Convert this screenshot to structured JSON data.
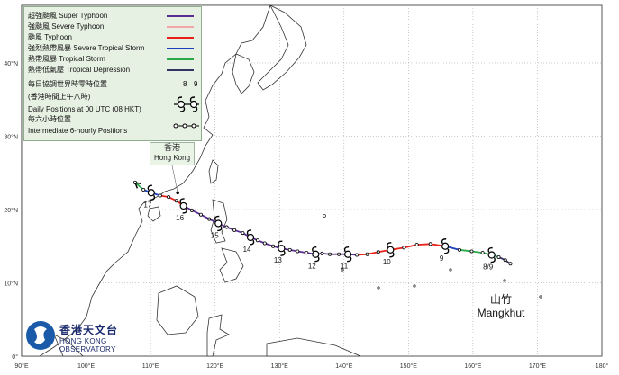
{
  "legend": {
    "super_typhoon": "超強颱風 Super Typhoon",
    "severe_typhoon": "強颱風 Severe Typhoon",
    "typhoon": "颱風  Typhoon",
    "severe_tropical_storm": "強烈熱帶風暴 Severe Tropical Storm",
    "tropical_storm": "熱帶風暴 Tropical Storm",
    "tropical_depression": "熱帶低氣壓  Tropical Depression",
    "daily_cn": "每日協調世界時零時位置",
    "daily_cn2": "(香港時間上午八時)",
    "daily_en": "Daily Positions at 00 UTC (08 HKT)",
    "six_hourly_cn": "每六小時位置",
    "six_hourly_en": "Intermediate 6-hourly Positions",
    "sample_day_a": "8",
    "sample_day_b": "9"
  },
  "colors": {
    "super_typhoon": "#5a2d91",
    "severe_typhoon": "#f4a6a6",
    "typhoon": "#e8221b",
    "severe_tropical_storm": "#1c3fbf",
    "tropical_storm": "#2ba84a",
    "tropical_depression": "#333366",
    "land": "#ffffff",
    "sea": "#ffffff"
  },
  "axes": {
    "lon_labels": [
      "90°E",
      "100°E",
      "110°E",
      "120°E",
      "130°E",
      "140°E",
      "150°E",
      "160°E",
      "170°E",
      "180°"
    ],
    "lat_labels": [
      "40°N",
      "30°N",
      "20°N",
      "10°N",
      "0°"
    ]
  },
  "hong_kong": {
    "cn": "香港",
    "en": "Hong Kong"
  },
  "storm": {
    "name_cn": "山竹",
    "name_en": "Mangkhut"
  },
  "logo": {
    "cn": "香港天文台",
    "en": "HONG KONG OBSERVATORY"
  },
  "track": [
    {
      "lon": 165.8,
      "lat": 12.6,
      "cat": "tropical_depression"
    },
    {
      "lon": 165.0,
      "lat": 13.1,
      "cat": "tropical_depression"
    },
    {
      "lon": 164.0,
      "lat": 13.5,
      "cat": "tropical_storm"
    },
    {
      "lon": 162.9,
      "lat": 13.8,
      "cat": "tropical_storm",
      "day": "8/9"
    },
    {
      "lon": 161.5,
      "lat": 14.1,
      "cat": "tropical_storm"
    },
    {
      "lon": 159.8,
      "lat": 14.3,
      "cat": "tropical_storm"
    },
    {
      "lon": 157.9,
      "lat": 14.5,
      "cat": "severe_tropical_storm"
    },
    {
      "lon": 155.7,
      "lat": 15.0,
      "cat": "typhoon",
      "day": "9"
    },
    {
      "lon": 153.4,
      "lat": 15.3,
      "cat": "typhoon"
    },
    {
      "lon": 151.3,
      "lat": 15.2,
      "cat": "typhoon"
    },
    {
      "lon": 149.3,
      "lat": 14.8,
      "cat": "typhoon"
    },
    {
      "lon": 147.2,
      "lat": 14.5,
      "cat": "typhoon",
      "day": "10"
    },
    {
      "lon": 145.3,
      "lat": 14.2,
      "cat": "typhoon"
    },
    {
      "lon": 143.6,
      "lat": 13.9,
      "cat": "typhoon"
    },
    {
      "lon": 142.0,
      "lat": 13.8,
      "cat": "super_typhoon"
    },
    {
      "lon": 140.6,
      "lat": 13.9,
      "cat": "super_typhoon",
      "day": "11"
    },
    {
      "lon": 139.2,
      "lat": 13.9,
      "cat": "super_typhoon"
    },
    {
      "lon": 137.8,
      "lat": 13.9,
      "cat": "super_typhoon"
    },
    {
      "lon": 136.6,
      "lat": 14.0,
      "cat": "super_typhoon"
    },
    {
      "lon": 135.6,
      "lat": 13.9,
      "cat": "super_typhoon",
      "day": "12"
    },
    {
      "lon": 134.2,
      "lat": 14.1,
      "cat": "super_typhoon"
    },
    {
      "lon": 132.8,
      "lat": 14.3,
      "cat": "super_typhoon"
    },
    {
      "lon": 131.6,
      "lat": 14.5,
      "cat": "super_typhoon"
    },
    {
      "lon": 130.3,
      "lat": 14.7,
      "cat": "super_typhoon",
      "day": "13"
    },
    {
      "lon": 129.0,
      "lat": 15.0,
      "cat": "super_typhoon"
    },
    {
      "lon": 127.7,
      "lat": 15.4,
      "cat": "super_typhoon"
    },
    {
      "lon": 126.6,
      "lat": 15.8,
      "cat": "super_typhoon"
    },
    {
      "lon": 125.5,
      "lat": 16.2,
      "cat": "super_typhoon",
      "day": "14"
    },
    {
      "lon": 124.3,
      "lat": 16.8,
      "cat": "super_typhoon"
    },
    {
      "lon": 123.0,
      "lat": 17.2,
      "cat": "super_typhoon"
    },
    {
      "lon": 121.8,
      "lat": 17.6,
      "cat": "super_typhoon"
    },
    {
      "lon": 120.5,
      "lat": 18.1,
      "cat": "super_typhoon",
      "day": "15"
    },
    {
      "lon": 119.1,
      "lat": 18.7,
      "cat": "super_typhoon"
    },
    {
      "lon": 117.8,
      "lat": 19.3,
      "cat": "super_typhoon"
    },
    {
      "lon": 116.4,
      "lat": 19.9,
      "cat": "super_typhoon"
    },
    {
      "lon": 115.1,
      "lat": 20.5,
      "cat": "typhoon",
      "day": "16"
    },
    {
      "lon": 114.0,
      "lat": 21.2,
      "cat": "typhoon"
    },
    {
      "lon": 112.8,
      "lat": 21.7,
      "cat": "typhoon"
    },
    {
      "lon": 111.5,
      "lat": 21.9,
      "cat": "severe_tropical_storm"
    },
    {
      "lon": 110.1,
      "lat": 22.3,
      "cat": "severe_tropical_storm",
      "day": "17"
    },
    {
      "lon": 108.9,
      "lat": 22.7,
      "cat": "tropical_storm"
    },
    {
      "lon": 107.6,
      "lat": 23.7,
      "cat": "tropical_depression"
    }
  ]
}
